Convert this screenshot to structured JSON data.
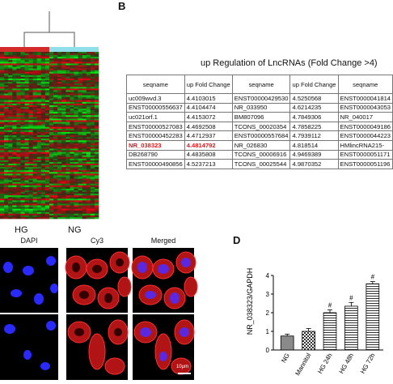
{
  "heatmap": {
    "group_labels": [
      "HG",
      "NG"
    ],
    "group_colors": [
      "#d42a2a",
      "#8fe0ea"
    ]
  },
  "panel_b": {
    "letter": "B",
    "title": "up Regulation of LncRNAs (Fold Change >4)",
    "headers": [
      "seqname",
      "up Fold Change",
      "seqname",
      "up Fold Change",
      "seqname"
    ],
    "rows": [
      [
        "uc009wvd.3",
        "4.4103015",
        "ENST00000429530",
        "4.5250568",
        "ENST0000041814"
      ],
      [
        "ENST00000556637",
        "4.4104474",
        "NR_033950",
        "4.6214235",
        "ENST0000043053"
      ],
      [
        "uc021orf.1",
        "4.4153072",
        "BM807096",
        "4.7849306",
        "NR_040017"
      ],
      [
        "ENST00000527083",
        "4.4692508",
        "TCONS_00020354",
        "4.7858225",
        "ENST0000049186"
      ],
      [
        "ENST00000452283",
        "4.4712937",
        "ENST00000557684",
        "4.7939112",
        "ENST0000044223"
      ],
      [
        "NR_038323",
        "4.4814792",
        "NR_026830",
        "4.818514",
        "HMlincRNA215-"
      ],
      [
        "DB268790",
        "4.4835808",
        "TCONS_00006916",
        "4.9469389",
        "ENST0000051171"
      ],
      [
        "ENST00000490856",
        "4.5237213",
        "TCONS_00025544",
        "4.9870352",
        "ENST0000051196"
      ]
    ],
    "highlight_row": 5,
    "highlight_color": "#e0161b"
  },
  "panel_c": {
    "labels": [
      "DAPI",
      "Cy3",
      "Merged"
    ],
    "scale_bar": "10μm",
    "colors": {
      "nucleus": "#2a2aff",
      "cytoplasm": "#d01818"
    }
  },
  "panel_d": {
    "letter": "D"
  },
  "chart_data": {
    "type": "bar",
    "ylabel": "NR_038323/GAPDH",
    "categories": [
      "NG",
      "Mannitol",
      "HG 24h",
      "HG 48h",
      "HG 72h"
    ],
    "values": [
      0.75,
      1.0,
      2.0,
      2.35,
      3.55
    ],
    "errors": [
      0.1,
      0.15,
      0.15,
      0.2,
      0.12
    ],
    "significance": [
      "",
      "",
      "#",
      "#",
      "#"
    ],
    "ylim": [
      0,
      4
    ],
    "yticks": [
      0,
      1,
      2,
      3,
      4
    ],
    "patterns": [
      "solid-grey",
      "checker",
      "hlines",
      "hlines",
      "hlines"
    ]
  }
}
